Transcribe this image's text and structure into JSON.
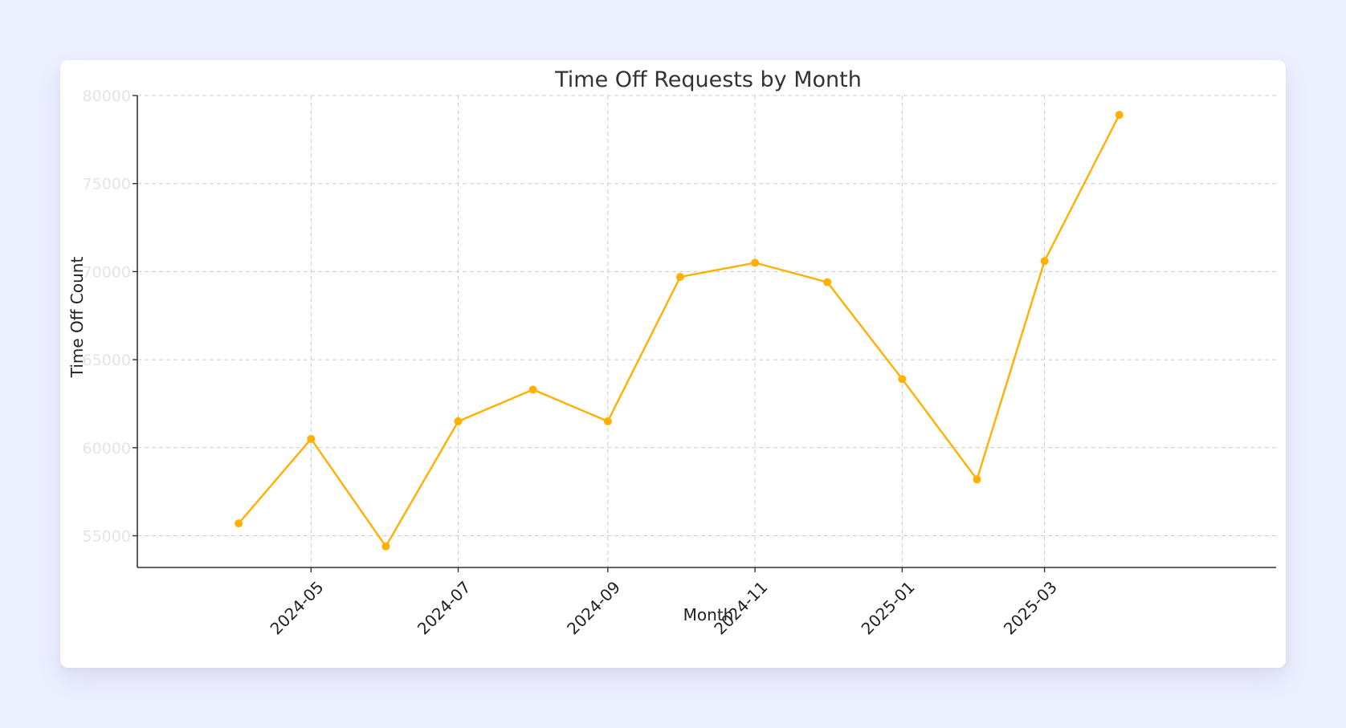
{
  "chart_data": {
    "type": "line",
    "title": "Time Off Requests by Month",
    "xlabel": "Month",
    "ylabel": "Time Off Count",
    "x": [
      "2024-04",
      "2024-05",
      "2024-06",
      "2024-07",
      "2024-08",
      "2024-09",
      "2024-10",
      "2024-11",
      "2024-12",
      "2025-01",
      "2025-02",
      "2025-03",
      "2025-04"
    ],
    "x_tick_labels": [
      "2024-05",
      "2024-07",
      "2024-09",
      "2024-11",
      "2025-01",
      "2025-03"
    ],
    "y_tick_labels": [
      55000,
      60000,
      65000,
      70000,
      75000,
      80000
    ],
    "series": [
      {
        "values": [
          55700,
          60500,
          54400,
          61500,
          63300,
          61500,
          69700,
          70500,
          69400,
          63900,
          58200,
          70600,
          78900
        ],
        "color": "#ffb000"
      }
    ],
    "ylim": [
      53200,
      80000
    ],
    "grid": true,
    "legend": "none"
  }
}
